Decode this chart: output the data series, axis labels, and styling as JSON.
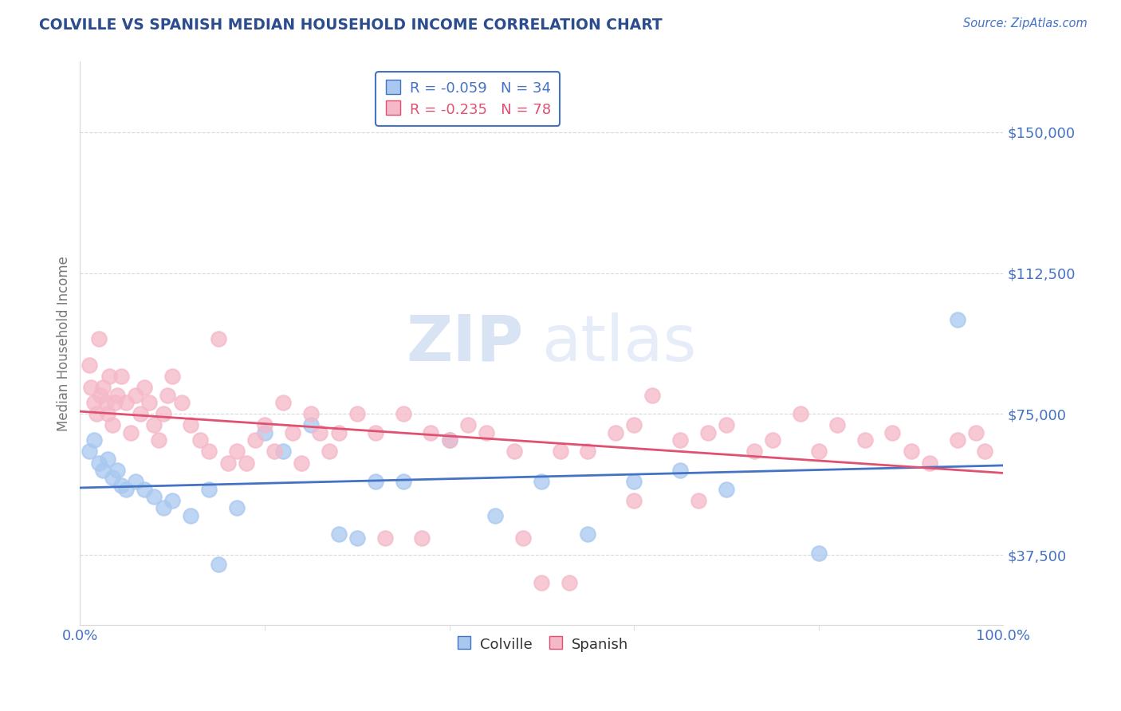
{
  "title": "COLVILLE VS SPANISH MEDIAN HOUSEHOLD INCOME CORRELATION CHART",
  "source": "Source: ZipAtlas.com",
  "ylabel": "Median Household Income",
  "xlim": [
    0,
    100
  ],
  "ylim": [
    18750,
    168750
  ],
  "yticks": [
    37500,
    75000,
    112500,
    150000
  ],
  "ytick_labels": [
    "$37,500",
    "$75,000",
    "$112,500",
    "$150,000"
  ],
  "colville_color": "#a8c8f0",
  "spanish_color": "#f5b8c8",
  "colville_line_color": "#4472c4",
  "spanish_line_color": "#e05070",
  "colville_R": -0.059,
  "colville_N": 34,
  "spanish_R": -0.235,
  "spanish_N": 78,
  "colville_x": [
    1.0,
    1.5,
    2.0,
    2.5,
    3.0,
    3.5,
    4.0,
    4.5,
    5.0,
    6.0,
    7.0,
    8.0,
    9.0,
    10.0,
    12.0,
    14.0,
    15.0,
    17.0,
    20.0,
    22.0,
    25.0,
    28.0,
    30.0,
    32.0,
    35.0,
    40.0,
    45.0,
    50.0,
    55.0,
    60.0,
    65.0,
    70.0,
    80.0,
    95.0
  ],
  "colville_y": [
    65000,
    68000,
    62000,
    60000,
    63000,
    58000,
    60000,
    56000,
    55000,
    57000,
    55000,
    53000,
    50000,
    52000,
    48000,
    55000,
    35000,
    50000,
    70000,
    65000,
    72000,
    43000,
    42000,
    57000,
    57000,
    68000,
    48000,
    57000,
    43000,
    57000,
    60000,
    55000,
    38000,
    100000
  ],
  "spanish_x": [
    1.0,
    1.2,
    1.5,
    1.8,
    2.0,
    2.2,
    2.5,
    2.8,
    3.0,
    3.2,
    3.5,
    3.8,
    4.0,
    4.5,
    5.0,
    5.5,
    6.0,
    6.5,
    7.0,
    7.5,
    8.0,
    8.5,
    9.0,
    9.5,
    10.0,
    11.0,
    12.0,
    13.0,
    14.0,
    15.0,
    16.0,
    17.0,
    18.0,
    19.0,
    20.0,
    21.0,
    22.0,
    23.0,
    24.0,
    25.0,
    26.0,
    27.0,
    28.0,
    30.0,
    32.0,
    33.0,
    35.0,
    37.0,
    38.0,
    40.0,
    42.0,
    44.0,
    47.0,
    48.0,
    50.0,
    52.0,
    53.0,
    55.0,
    58.0,
    60.0,
    62.0,
    65.0,
    68.0,
    70.0,
    73.0,
    75.0,
    78.0,
    80.0,
    82.0,
    85.0,
    88.0,
    90.0,
    92.0,
    95.0,
    97.0,
    98.0,
    60.0,
    67.0
  ],
  "spanish_y": [
    88000,
    82000,
    78000,
    75000,
    95000,
    80000,
    82000,
    78000,
    75000,
    85000,
    72000,
    78000,
    80000,
    85000,
    78000,
    70000,
    80000,
    75000,
    82000,
    78000,
    72000,
    68000,
    75000,
    80000,
    85000,
    78000,
    72000,
    68000,
    65000,
    95000,
    62000,
    65000,
    62000,
    68000,
    72000,
    65000,
    78000,
    70000,
    62000,
    75000,
    70000,
    65000,
    70000,
    75000,
    70000,
    42000,
    75000,
    42000,
    70000,
    68000,
    72000,
    70000,
    65000,
    42000,
    30000,
    65000,
    30000,
    65000,
    70000,
    72000,
    80000,
    68000,
    70000,
    72000,
    65000,
    68000,
    75000,
    65000,
    72000,
    68000,
    70000,
    65000,
    62000,
    68000,
    70000,
    65000,
    52000,
    52000
  ],
  "watermark_zip": "ZIP",
  "watermark_atlas": "atlas",
  "background_color": "#ffffff",
  "grid_color": "#d8d8d8",
  "title_color": "#2b4d8f",
  "source_color": "#4472c4",
  "axis_label_color": "#777777",
  "tick_color": "#4472c4",
  "legend_edge_color": "#4472c4"
}
